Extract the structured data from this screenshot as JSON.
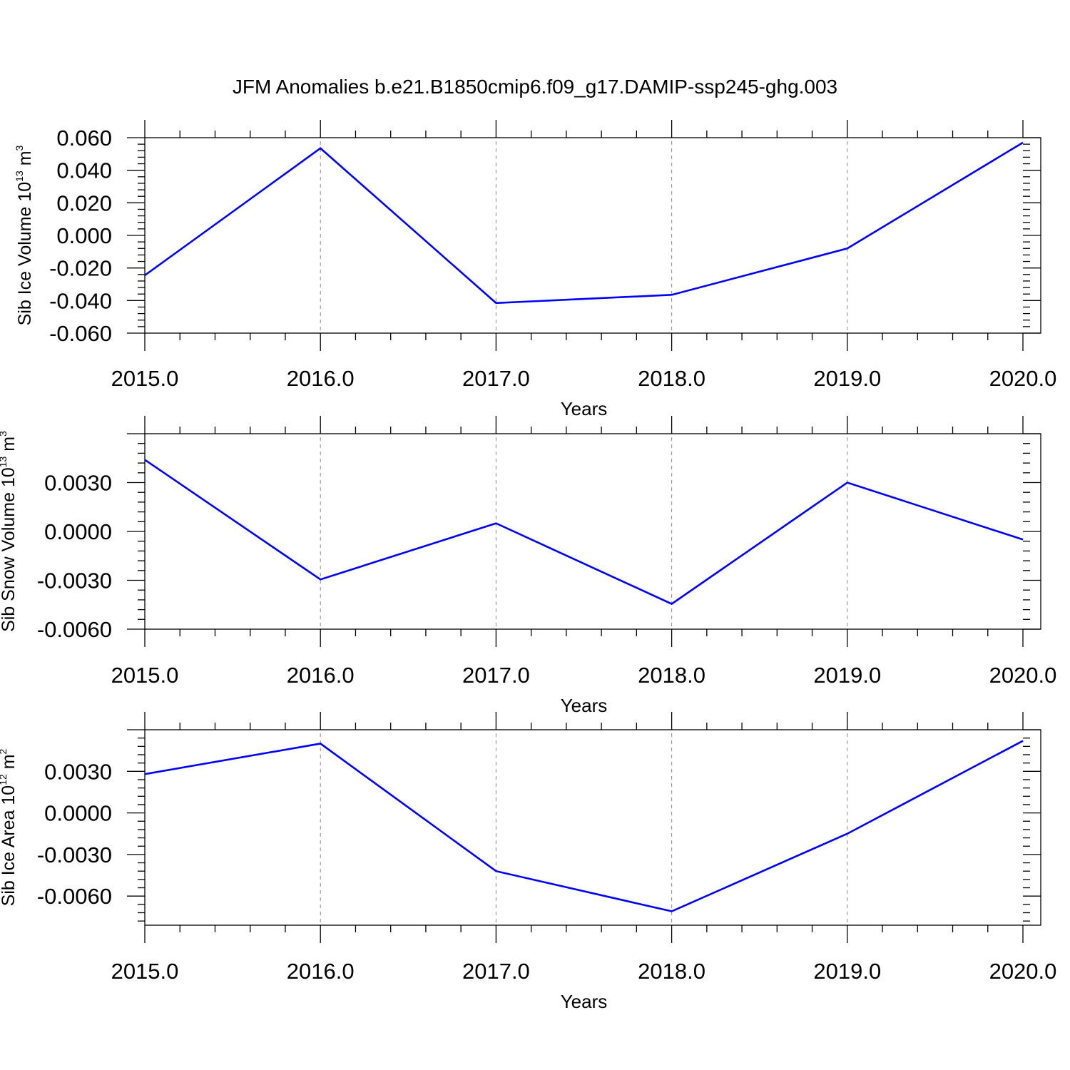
{
  "title": "JFM Anomalies b.e21.B1850cmip6.f09_g17.DAMIP-ssp245-ghg.003",
  "series_color": "#0000ff",
  "chart_data": [
    {
      "type": "line",
      "ylabel": {
        "base": "Sib Ice Volume 10",
        "exp": "13",
        "unit": " m",
        "unit_exp": "3"
      },
      "xlabel": "Years",
      "xlim": [
        2015,
        2020
      ],
      "ylim": [
        -0.06,
        0.06
      ],
      "x_ticks": [
        "2015.0",
        "2016.0",
        "2017.0",
        "2018.0",
        "2019.0",
        "2020.0"
      ],
      "y_ticks": [
        {
          "value": -0.06,
          "label": "-0.060"
        },
        {
          "value": -0.04,
          "label": "-0.040"
        },
        {
          "value": -0.02,
          "label": "-0.020"
        },
        {
          "value": 0.0,
          "label": "0.000"
        },
        {
          "value": 0.02,
          "label": "0.020"
        },
        {
          "value": 0.04,
          "label": "0.040"
        },
        {
          "value": 0.06,
          "label": "0.060"
        }
      ],
      "x": [
        2015,
        2016,
        2017,
        2018,
        2019,
        2020
      ],
      "values": [
        -0.0245,
        0.0535,
        -0.0415,
        -0.0365,
        -0.008,
        0.057
      ]
    },
    {
      "type": "line",
      "ylabel": {
        "base": "Sib Snow Volume 10",
        "exp": "13",
        "unit": " m",
        "unit_exp": "3"
      },
      "xlabel": "Years",
      "xlim": [
        2015,
        2020
      ],
      "ylim": [
        -0.006,
        0.006
      ],
      "x_ticks": [
        "2015.0",
        "2016.0",
        "2017.0",
        "2018.0",
        "2019.0",
        "2020.0"
      ],
      "y_ticks": [
        {
          "value": -0.006,
          "label": "-0.0060"
        },
        {
          "value": -0.003,
          "label": "-0.0030"
        },
        {
          "value": 0.0,
          "label": "0.0000"
        },
        {
          "value": 0.003,
          "label": "0.0030"
        }
      ],
      "x": [
        2015,
        2016,
        2017,
        2018,
        2019,
        2020
      ],
      "values": [
        0.0044,
        -0.00295,
        0.0005,
        -0.00445,
        0.003,
        -0.0005
      ]
    },
    {
      "type": "line",
      "ylabel": {
        "base": "Sib Ice Area 10",
        "exp": "12",
        "unit": " m",
        "unit_exp": "2"
      },
      "xlabel": "Years",
      "xlim": [
        2015,
        2020
      ],
      "ylim": [
        -0.0081,
        0.006
      ],
      "x_ticks": [
        "2015.0",
        "2016.0",
        "2017.0",
        "2018.0",
        "2019.0",
        "2020.0"
      ],
      "y_ticks": [
        {
          "value": -0.006,
          "label": "-0.0060"
        },
        {
          "value": -0.003,
          "label": "-0.0030"
        },
        {
          "value": 0.0,
          "label": "0.0000"
        },
        {
          "value": 0.003,
          "label": "0.0030"
        }
      ],
      "x": [
        2015,
        2016,
        2017,
        2018,
        2019,
        2020
      ],
      "values": [
        0.0028,
        0.005,
        -0.0042,
        -0.0071,
        -0.0015,
        0.0052
      ]
    }
  ]
}
